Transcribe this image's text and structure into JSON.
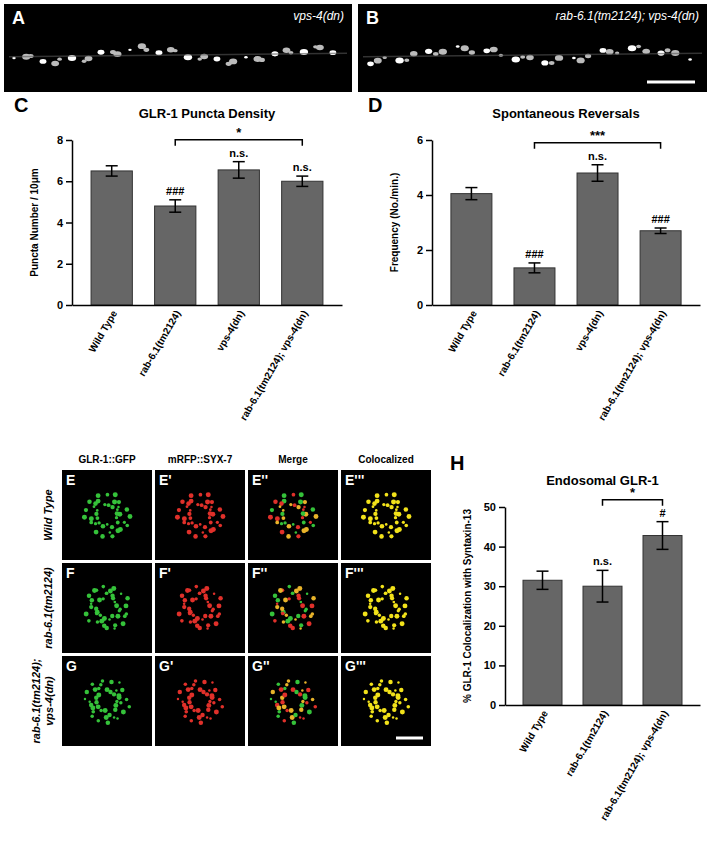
{
  "panels": [
    {
      "label": "A",
      "caption": "vps-4(dn)"
    },
    {
      "label": "B",
      "caption": "rab-6.1(tm2124); vps-4(dn)"
    }
  ],
  "grid": {
    "columns": [
      "GLR-1::GFP",
      "mRFP::SYX-7",
      "Merge",
      "Colocalized"
    ],
    "rows": [
      {
        "label": [
          "Wild Type"
        ],
        "panels": [
          "E",
          "E'",
          "E''",
          "E'''"
        ]
      },
      {
        "label": [
          "rab-6.1(tm2124)"
        ],
        "panels": [
          "F",
          "F'",
          "F''",
          "F'''"
        ]
      },
      {
        "label": [
          "rab-6.1(tm2124);",
          "vps-4(dn)"
        ],
        "panels": [
          "G",
          "G'",
          "G''",
          "G'''"
        ]
      }
    ]
  },
  "chart_data": [
    {
      "type": "bar",
      "panel": "C",
      "title": "GLR-1 Puncta Density",
      "y_label": "Puncta Number / 10μm",
      "categories": [
        "Wild Type",
        "rab-6.1(tm2124)",
        "vps-4(dn)",
        "rab-6.1(tm2124); vps-4(dn)"
      ],
      "values": [
        6.5,
        4.8,
        6.55,
        6.0
      ],
      "errors": [
        0.25,
        0.3,
        0.4,
        0.25
      ],
      "significance": [
        null,
        "###",
        "n.s.",
        "n.s."
      ],
      "comparison": {
        "from": "rab-6.1(tm2124)",
        "to": "rab-6.1(tm2124); vps-4(dn)",
        "label": "*"
      },
      "color": "#666666",
      "ylim": [
        0,
        8
      ],
      "yticks": [
        0,
        2,
        4,
        6,
        8
      ],
      "grid": false
    },
    {
      "type": "bar",
      "panel": "D",
      "title": "Spontaneous Reversals",
      "y_label": "Frequency (No./min.)",
      "categories": [
        "Wild Type",
        "rab-6.1(tm2124)",
        "vps-4(dn)",
        "rab-6.1(tm2124); vps-4(dn)"
      ],
      "values": [
        4.05,
        1.35,
        4.8,
        2.7
      ],
      "errors": [
        0.22,
        0.18,
        0.3,
        0.1
      ],
      "significance": [
        null,
        "###",
        "n.s.",
        "###"
      ],
      "comparison": {
        "from": "rab-6.1(tm2124)",
        "to": "rab-6.1(tm2124); vps-4(dn)",
        "label": "***"
      },
      "color": "#666666",
      "ylim": [
        0,
        6
      ],
      "yticks": [
        0,
        2,
        4,
        6
      ],
      "grid": false
    },
    {
      "type": "bar",
      "panel": "H",
      "title": "Endosomal GLR-1",
      "y_label": "% GLR-1 Colocalization with Syntaxin-13",
      "categories": [
        "Wild Type",
        "rab-6.1(tm2124)",
        "rab-6.1(tm2124); vps-4(dn)"
      ],
      "values": [
        31.5,
        30,
        42.8
      ],
      "errors": [
        2.3,
        4,
        3.5
      ],
      "significance": [
        null,
        "n.s.",
        "#"
      ],
      "comparison": {
        "from": "rab-6.1(tm2124)",
        "to": "rab-6.1(tm2124); vps-4(dn)",
        "label": "*"
      },
      "color": "#666666",
      "ylim": [
        0,
        50
      ],
      "yticks": [
        0,
        10,
        20,
        30,
        40,
        50
      ],
      "grid": false
    }
  ]
}
